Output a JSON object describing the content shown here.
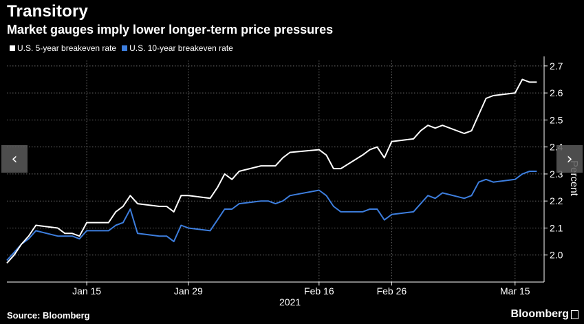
{
  "header": {
    "title": "Transitory",
    "subtitle": "Market gauges imply lower longer-term price pressures"
  },
  "footer": {
    "source": "Source: Bloomberg",
    "brand": "Bloomberg"
  },
  "nav": {
    "prev_glyph": "‹",
    "next_glyph": "›"
  },
  "colors": {
    "background": "#000000",
    "series_5y": "#ffffff",
    "series_10y": "#3d7ede",
    "grid": "#6b6b6b",
    "text": "#ffffff"
  },
  "chart_data": {
    "type": "line",
    "title": "Transitory",
    "subtitle": "Market gauges imply lower longer-term price pressures",
    "ylabel": "Percent",
    "xlabel": "2021",
    "ylim": [
      1.9,
      2.72
    ],
    "yticks": [
      2.0,
      2.1,
      2.2,
      2.3,
      2.4,
      2.5,
      2.6,
      2.7
    ],
    "ytick_labels": [
      "2.0",
      "2.1",
      "2.2",
      "2.3",
      "2.4",
      "2.5",
      "2.6",
      "2.7"
    ],
    "xlim": [
      "2021-01-04",
      "2021-03-19"
    ],
    "xticks": [
      "2021-01-15",
      "2021-01-29",
      "2021-02-16",
      "2021-02-26",
      "2021-03-15"
    ],
    "xtick_labels": [
      "Jan 15",
      "Jan 29",
      "Feb 16",
      "Feb 26",
      "Mar 15"
    ],
    "grid": true,
    "legend_position": "top-left",
    "series": [
      {
        "name": "U.S. 5-year breakeven rate",
        "color": "#ffffff",
        "points": [
          [
            "2021-01-04",
            1.97
          ],
          [
            "2021-01-05",
            2.0
          ],
          [
            "2021-01-06",
            2.04
          ],
          [
            "2021-01-07",
            2.07
          ],
          [
            "2021-01-08",
            2.11
          ],
          [
            "2021-01-11",
            2.1
          ],
          [
            "2021-01-12",
            2.08
          ],
          [
            "2021-01-13",
            2.08
          ],
          [
            "2021-01-14",
            2.07
          ],
          [
            "2021-01-15",
            2.12
          ],
          [
            "2021-01-18",
            2.12
          ],
          [
            "2021-01-19",
            2.16
          ],
          [
            "2021-01-20",
            2.18
          ],
          [
            "2021-01-21",
            2.22
          ],
          [
            "2021-01-22",
            2.19
          ],
          [
            "2021-01-25",
            2.18
          ],
          [
            "2021-01-26",
            2.18
          ],
          [
            "2021-01-27",
            2.16
          ],
          [
            "2021-01-28",
            2.22
          ],
          [
            "2021-01-29",
            2.22
          ],
          [
            "2021-02-01",
            2.21
          ],
          [
            "2021-02-02",
            2.25
          ],
          [
            "2021-02-03",
            2.3
          ],
          [
            "2021-02-04",
            2.28
          ],
          [
            "2021-02-05",
            2.31
          ],
          [
            "2021-02-08",
            2.33
          ],
          [
            "2021-02-09",
            2.33
          ],
          [
            "2021-02-10",
            2.33
          ],
          [
            "2021-02-11",
            2.36
          ],
          [
            "2021-02-12",
            2.38
          ],
          [
            "2021-02-16",
            2.39
          ],
          [
            "2021-02-17",
            2.37
          ],
          [
            "2021-02-18",
            2.32
          ],
          [
            "2021-02-19",
            2.32
          ],
          [
            "2021-02-22",
            2.37
          ],
          [
            "2021-02-23",
            2.39
          ],
          [
            "2021-02-24",
            2.4
          ],
          [
            "2021-02-25",
            2.36
          ],
          [
            "2021-02-26",
            2.42
          ],
          [
            "2021-03-01",
            2.43
          ],
          [
            "2021-03-02",
            2.46
          ],
          [
            "2021-03-03",
            2.48
          ],
          [
            "2021-03-04",
            2.47
          ],
          [
            "2021-03-05",
            2.48
          ],
          [
            "2021-03-08",
            2.45
          ],
          [
            "2021-03-09",
            2.46
          ],
          [
            "2021-03-10",
            2.52
          ],
          [
            "2021-03-11",
            2.58
          ],
          [
            "2021-03-12",
            2.59
          ],
          [
            "2021-03-15",
            2.6
          ],
          [
            "2021-03-16",
            2.65
          ],
          [
            "2021-03-17",
            2.64
          ],
          [
            "2021-03-18",
            2.64
          ]
        ]
      },
      {
        "name": "U.S. 10-year breakeven rate",
        "color": "#3d7ede",
        "points": [
          [
            "2021-01-04",
            1.98
          ],
          [
            "2021-01-05",
            2.01
          ],
          [
            "2021-01-06",
            2.04
          ],
          [
            "2021-01-07",
            2.06
          ],
          [
            "2021-01-08",
            2.09
          ],
          [
            "2021-01-11",
            2.07
          ],
          [
            "2021-01-12",
            2.07
          ],
          [
            "2021-01-13",
            2.07
          ],
          [
            "2021-01-14",
            2.06
          ],
          [
            "2021-01-15",
            2.09
          ],
          [
            "2021-01-18",
            2.09
          ],
          [
            "2021-01-19",
            2.11
          ],
          [
            "2021-01-20",
            2.12
          ],
          [
            "2021-01-21",
            2.17
          ],
          [
            "2021-01-22",
            2.08
          ],
          [
            "2021-01-25",
            2.07
          ],
          [
            "2021-01-26",
            2.07
          ],
          [
            "2021-01-27",
            2.05
          ],
          [
            "2021-01-28",
            2.11
          ],
          [
            "2021-01-29",
            2.1
          ],
          [
            "2021-02-01",
            2.09
          ],
          [
            "2021-02-02",
            2.13
          ],
          [
            "2021-02-03",
            2.17
          ],
          [
            "2021-02-04",
            2.17
          ],
          [
            "2021-02-05",
            2.19
          ],
          [
            "2021-02-08",
            2.2
          ],
          [
            "2021-02-09",
            2.2
          ],
          [
            "2021-02-10",
            2.19
          ],
          [
            "2021-02-11",
            2.2
          ],
          [
            "2021-02-12",
            2.22
          ],
          [
            "2021-02-16",
            2.24
          ],
          [
            "2021-02-17",
            2.22
          ],
          [
            "2021-02-18",
            2.18
          ],
          [
            "2021-02-19",
            2.16
          ],
          [
            "2021-02-22",
            2.16
          ],
          [
            "2021-02-23",
            2.17
          ],
          [
            "2021-02-24",
            2.17
          ],
          [
            "2021-02-25",
            2.13
          ],
          [
            "2021-02-26",
            2.15
          ],
          [
            "2021-03-01",
            2.16
          ],
          [
            "2021-03-02",
            2.19
          ],
          [
            "2021-03-03",
            2.22
          ],
          [
            "2021-03-04",
            2.21
          ],
          [
            "2021-03-05",
            2.23
          ],
          [
            "2021-03-08",
            2.21
          ],
          [
            "2021-03-09",
            2.22
          ],
          [
            "2021-03-10",
            2.27
          ],
          [
            "2021-03-11",
            2.28
          ],
          [
            "2021-03-12",
            2.27
          ],
          [
            "2021-03-15",
            2.28
          ],
          [
            "2021-03-16",
            2.3
          ],
          [
            "2021-03-17",
            2.31
          ],
          [
            "2021-03-18",
            2.31
          ]
        ]
      }
    ]
  }
}
